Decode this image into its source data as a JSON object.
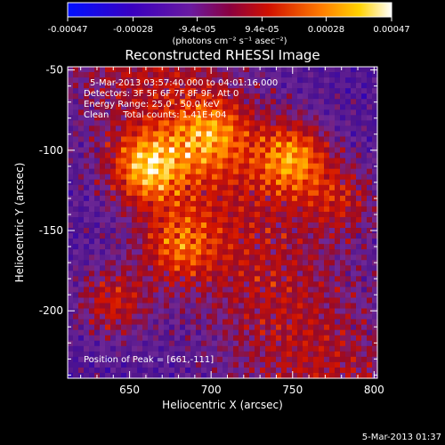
{
  "figure": {
    "title": "Reconstructed RHESSI Image",
    "timestamp": "5-Mar-2013 01:37"
  },
  "colorbar": {
    "ticks": [
      "-0.00047",
      "-0.00028",
      "-9.4e-05",
      "9.4e-05",
      "0.00028",
      "0.00047"
    ],
    "values": [
      -0.00047,
      -0.00028,
      -9.4e-05,
      9.4e-05,
      0.00028,
      0.00047
    ],
    "range": [
      -0.00047,
      0.00047
    ],
    "units_label": "(photons cm⁻² s⁻¹ asec⁻²)",
    "colors": [
      "#0000ff",
      "#2000a0",
      "#4b0082",
      "#7a2fb0",
      "#c01010",
      "#ff6a00",
      "#ffd000",
      "#ffffff"
    ]
  },
  "annotations": {
    "time_range": "5-Mar-2013 03:57:40.000 to 04:01:16.000",
    "detectors": "Detectors: 3F 5F 6F 7F 8F 9F, Att 0",
    "energy": "Energy Range: 25.0 - 50.0 keV",
    "clean": "Clean     Total counts: 1.41E+04",
    "peak": "Position of Peak = [661,-111]"
  },
  "chart_data": {
    "type": "heatmap",
    "title": "Reconstructed RHESSI Image",
    "xlabel": "Heliocentric X (arcsec)",
    "ylabel": "Heliocentric Y (arcsec)",
    "xlim": [
      612,
      802
    ],
    "ylim": [
      -242,
      -48
    ],
    "xticks": [
      650,
      700,
      750,
      800
    ],
    "yticks": [
      -50,
      -100,
      -150,
      -200
    ],
    "peak_position": [
      661,
      -111
    ],
    "bright_sources": [
      {
        "x": 661,
        "y": -111,
        "intensity": 0.00047
      },
      {
        "x": 750,
        "y": -105,
        "intensity": 0.00045
      },
      {
        "x": 700,
        "y": -90,
        "intensity": 0.0003
      },
      {
        "x": 680,
        "y": -160,
        "intensity": 0.0003
      },
      {
        "x": 640,
        "y": -195,
        "intensity": 0.00028
      },
      {
        "x": 780,
        "y": -130,
        "intensity": 0.0002
      }
    ],
    "background_level": -0.0001,
    "grid": false
  }
}
